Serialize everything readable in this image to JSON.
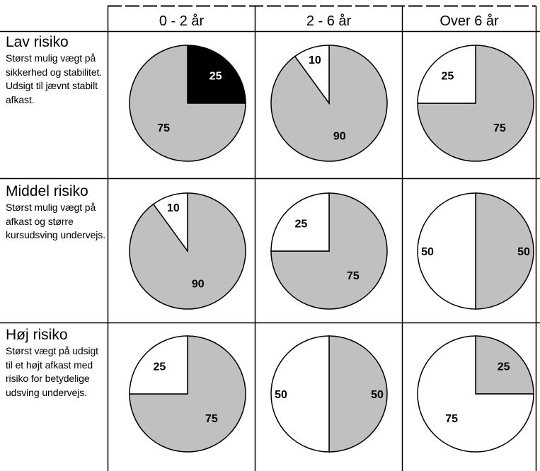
{
  "columns": [
    "0 - 2 år",
    "2 - 6 år",
    "Over 6 år"
  ],
  "rows": [
    {
      "title": "Lav risiko",
      "description": "Størst mulig vægt på sikkerhed og stabilitet. Udsigt til jævnt stabilt afkast."
    },
    {
      "title": "Middel risiko",
      "description": "Størst mulig vægt på afkast og større kursudsving undervejs."
    },
    {
      "title": "Høj risiko",
      "description": "Størst vægt på udsigt til et højt afkast med risiko for betydelige udsving undervejs."
    }
  ],
  "colors": {
    "gray": "#c0c0c0",
    "white": "#ffffff",
    "black": "#000000",
    "border": "#000000"
  },
  "chart_data": [
    {
      "type": "pie",
      "row": "Lav risiko",
      "column": "0 - 2 år",
      "slices": [
        {
          "value": 25,
          "label": "25",
          "color": "black"
        },
        {
          "value": 75,
          "label": "75",
          "color": "gray"
        }
      ]
    },
    {
      "type": "pie",
      "row": "Lav risiko",
      "column": "2 - 6 år",
      "slices": [
        {
          "value": 90,
          "label": "90",
          "color": "gray"
        },
        {
          "value": 10,
          "label": "10",
          "color": "white"
        }
      ]
    },
    {
      "type": "pie",
      "row": "Lav risiko",
      "column": "Over 6 år",
      "slices": [
        {
          "value": 75,
          "label": "75",
          "color": "gray"
        },
        {
          "value": 25,
          "label": "25",
          "color": "white"
        }
      ]
    },
    {
      "type": "pie",
      "row": "Middel risiko",
      "column": "0 - 2 år",
      "slices": [
        {
          "value": 90,
          "label": "90",
          "color": "gray"
        },
        {
          "value": 10,
          "label": "10",
          "color": "white"
        }
      ]
    },
    {
      "type": "pie",
      "row": "Middel risiko",
      "column": "2 - 6 år",
      "slices": [
        {
          "value": 75,
          "label": "75",
          "color": "gray"
        },
        {
          "value": 25,
          "label": "25",
          "color": "white"
        }
      ]
    },
    {
      "type": "pie",
      "row": "Middel risiko",
      "column": "Over 6 år",
      "slices": [
        {
          "value": 50,
          "label": "50",
          "color": "gray"
        },
        {
          "value": 50,
          "label": "50",
          "color": "white"
        }
      ]
    },
    {
      "type": "pie",
      "row": "Høj risiko",
      "column": "0 - 2 år",
      "slices": [
        {
          "value": 75,
          "label": "75",
          "color": "gray"
        },
        {
          "value": 25,
          "label": "25",
          "color": "white"
        }
      ]
    },
    {
      "type": "pie",
      "row": "Høj risiko",
      "column": "2 - 6 år",
      "slices": [
        {
          "value": 50,
          "label": "50",
          "color": "gray"
        },
        {
          "value": 50,
          "label": "50",
          "color": "white"
        }
      ]
    },
    {
      "type": "pie",
      "row": "Høj risiko",
      "column": "Over 6 år",
      "slices": [
        {
          "value": 25,
          "label": "25",
          "color": "gray"
        },
        {
          "value": 75,
          "label": "75",
          "color": "white"
        }
      ]
    }
  ]
}
